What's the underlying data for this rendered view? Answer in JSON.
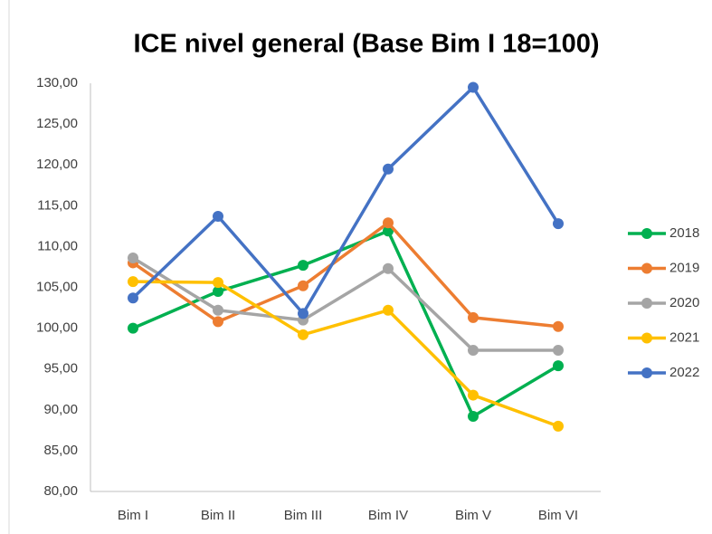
{
  "chart_data": {
    "type": "line",
    "title": "ICE nivel general (Base Bim I 18=100)",
    "categories": [
      "Bim I",
      "Bim II",
      "Bim III",
      "Bim IV",
      "Bim V",
      "Bim VI"
    ],
    "series": [
      {
        "name": "2018",
        "color": "#00b050",
        "values": [
          100.0,
          104.5,
          107.7,
          111.9,
          89.2,
          95.4
        ]
      },
      {
        "name": "2019",
        "color": "#ed7d31",
        "values": [
          108.0,
          100.8,
          105.2,
          112.9,
          101.3,
          100.2
        ]
      },
      {
        "name": "2020",
        "color": "#a5a5a5",
        "values": [
          108.6,
          102.2,
          101.0,
          107.3,
          97.3,
          97.3
        ]
      },
      {
        "name": "2021",
        "color": "#ffc000",
        "values": [
          105.7,
          105.6,
          99.2,
          102.2,
          91.8,
          88.0
        ]
      },
      {
        "name": "2022",
        "color": "#4472c4",
        "values": [
          103.7,
          113.7,
          101.8,
          119.5,
          129.5,
          112.8
        ]
      }
    ],
    "ylim": [
      80,
      130
    ],
    "yticks": [
      {
        "value": 80,
        "label": "80,00"
      },
      {
        "value": 85,
        "label": "85,00"
      },
      {
        "value": 90,
        "label": "90,00"
      },
      {
        "value": 95,
        "label": "95,00"
      },
      {
        "value": 100,
        "label": "100,00"
      },
      {
        "value": 105,
        "label": "105,00"
      },
      {
        "value": 110,
        "label": "110,00"
      },
      {
        "value": 115,
        "label": "115,00"
      },
      {
        "value": 120,
        "label": "120,00"
      },
      {
        "value": 125,
        "label": "125,00"
      },
      {
        "value": 130,
        "label": "130,00"
      }
    ],
    "legend": "right"
  }
}
